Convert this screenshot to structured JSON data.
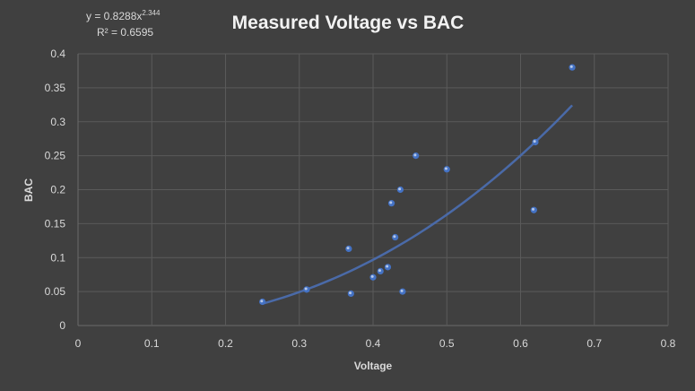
{
  "chart_data": {
    "type": "scatter",
    "title": "Measured Voltage vs BAC",
    "xlabel": "Voltage",
    "ylabel": "BAC",
    "xlim": [
      0,
      0.8
    ],
    "ylim": [
      0,
      0.4
    ],
    "xticks": [
      0,
      0.1,
      0.2,
      0.3,
      0.4,
      0.5,
      0.6,
      0.7,
      0.8
    ],
    "xtick_labels": [
      "0",
      "0.1",
      "0.2",
      "0.3",
      "0.4",
      "0.5",
      "0.6",
      "0.7",
      "0.8"
    ],
    "yticks": [
      0,
      0.05,
      0.1,
      0.15,
      0.2,
      0.25,
      0.3,
      0.35,
      0.4
    ],
    "ytick_labels": [
      "0",
      "0.05",
      "0.1",
      "0.15",
      "0.2",
      "0.25",
      "0.3",
      "0.35",
      "0.4"
    ],
    "grid": true,
    "series": [
      {
        "name": "BAC",
        "x": [
          0.25,
          0.31,
          0.37,
          0.367,
          0.4,
          0.41,
          0.42,
          0.425,
          0.43,
          0.437,
          0.44,
          0.458,
          0.5,
          0.618,
          0.62,
          0.67
        ],
        "y": [
          0.035,
          0.053,
          0.047,
          0.113,
          0.071,
          0.08,
          0.086,
          0.18,
          0.13,
          0.2,
          0.05,
          0.25,
          0.23,
          0.17,
          0.27,
          0.38
        ]
      }
    ],
    "trendline": {
      "type": "power",
      "coefficient": 0.8288,
      "exponent": 2.344,
      "x_range": [
        0.25,
        0.67
      ],
      "equation_base": "y = 0.8288x",
      "equation_exponent": "2.344",
      "r2_label": "R² = 0.6595"
    },
    "colors": {
      "point": "#4472c4",
      "trendline": "#4a6aa8"
    }
  }
}
